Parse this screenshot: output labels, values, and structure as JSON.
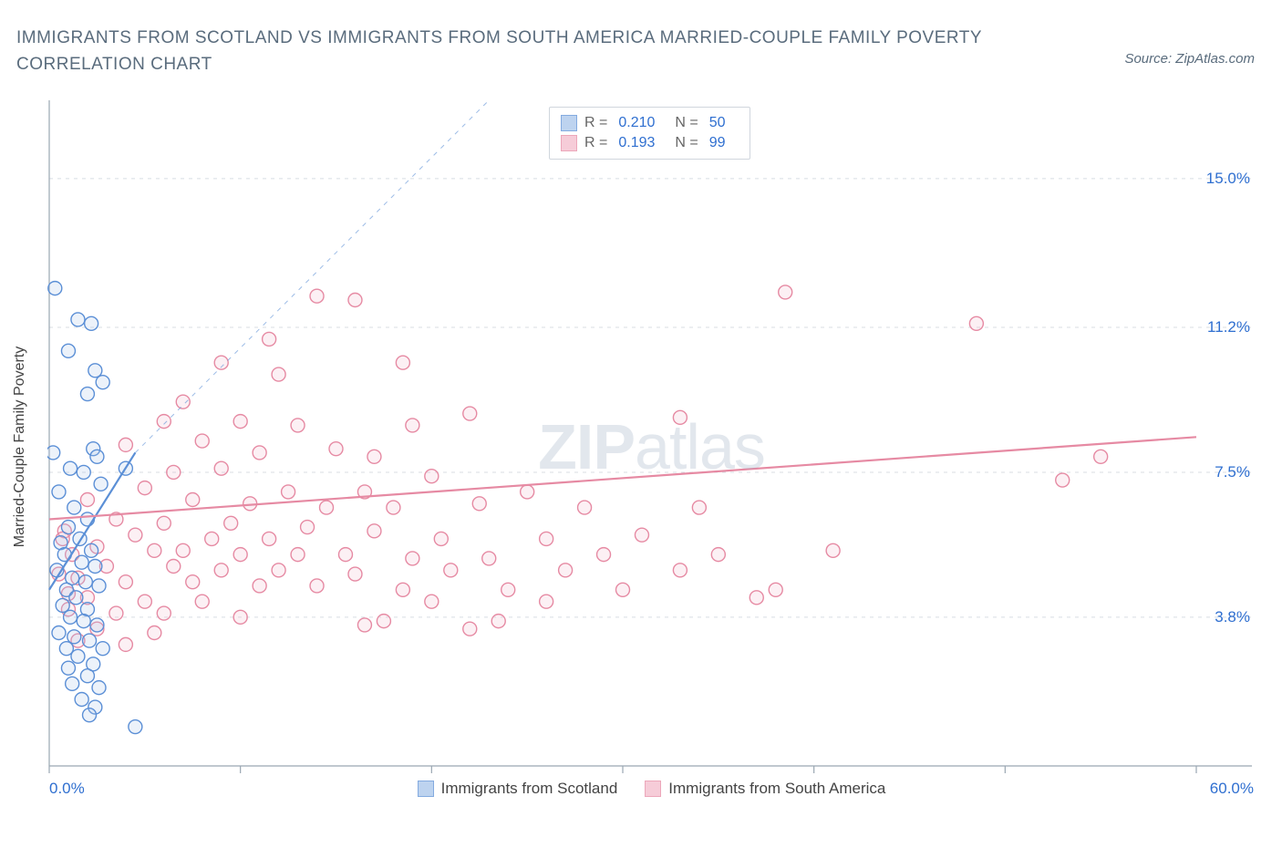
{
  "title": "IMMIGRANTS FROM SCOTLAND VS IMMIGRANTS FROM SOUTH AMERICA MARRIED-COUPLE FAMILY POVERTY CORRELATION CHART",
  "source": "Source: ZipAtlas.com",
  "ylabel": "Married-Couple Family Poverty",
  "watermark_bold": "ZIP",
  "watermark_rest": "atlas",
  "chart": {
    "type": "scatter",
    "xlim": [
      0,
      60
    ],
    "ylim": [
      0,
      17
    ],
    "x_ticks": [
      0,
      10,
      20,
      30,
      40,
      50,
      60
    ],
    "y_gridlines": [
      3.8,
      7.5,
      11.2,
      15.0
    ],
    "y_tick_labels": [
      "3.8%",
      "7.5%",
      "11.2%",
      "15.0%"
    ],
    "x_min_label": "0.0%",
    "x_max_label": "60.0%",
    "background_color": "#ffffff",
    "grid_color": "#d8dde3",
    "axis_color": "#9aa6b2",
    "watermark_color": "rgba(150,170,190,0.28)",
    "axis_fontsize": 17,
    "label_fontsize": 16,
    "title_fontsize": 19,
    "title_color": "#5a6c7d",
    "marker_radius": 7.5,
    "marker_stroke_width": 1.4,
    "marker_fill_opacity": 0.22,
    "trend_line_width": 2.2
  },
  "series": [
    {
      "name": "Immigrants from Scotland",
      "color_stroke": "#5b8fd6",
      "color_fill": "#a7c5ea",
      "R": "0.210",
      "N": "50",
      "trend": {
        "x1": 0,
        "y1": 4.5,
        "x2": 4.5,
        "y2": 8.0,
        "dashed": false
      },
      "trend_ext": {
        "x1": 4.5,
        "y1": 8.0,
        "x2": 23,
        "y2": 17,
        "dashed": true
      },
      "points": [
        [
          0.3,
          12.2
        ],
        [
          1.5,
          11.4
        ],
        [
          2.2,
          11.3
        ],
        [
          1.0,
          10.6
        ],
        [
          2.4,
          10.1
        ],
        [
          2.8,
          9.8
        ],
        [
          2.0,
          9.5
        ],
        [
          0.2,
          8.0
        ],
        [
          2.3,
          8.1
        ],
        [
          2.5,
          7.9
        ],
        [
          1.1,
          7.6
        ],
        [
          1.8,
          7.5
        ],
        [
          4.0,
          7.6
        ],
        [
          2.7,
          7.2
        ],
        [
          0.5,
          7.0
        ],
        [
          1.3,
          6.6
        ],
        [
          2.0,
          6.3
        ],
        [
          1.0,
          6.1
        ],
        [
          1.6,
          5.8
        ],
        [
          0.6,
          5.7
        ],
        [
          2.2,
          5.5
        ],
        [
          0.8,
          5.4
        ],
        [
          1.7,
          5.2
        ],
        [
          2.4,
          5.1
        ],
        [
          0.4,
          5.0
        ],
        [
          1.2,
          4.8
        ],
        [
          1.9,
          4.7
        ],
        [
          0.9,
          4.5
        ],
        [
          2.6,
          4.6
        ],
        [
          1.4,
          4.3
        ],
        [
          0.7,
          4.1
        ],
        [
          2.0,
          4.0
        ],
        [
          1.1,
          3.8
        ],
        [
          1.8,
          3.7
        ],
        [
          2.5,
          3.6
        ],
        [
          0.5,
          3.4
        ],
        [
          1.3,
          3.3
        ],
        [
          2.1,
          3.2
        ],
        [
          0.9,
          3.0
        ],
        [
          2.8,
          3.0
        ],
        [
          1.5,
          2.8
        ],
        [
          2.3,
          2.6
        ],
        [
          1.0,
          2.5
        ],
        [
          2.0,
          2.3
        ],
        [
          1.2,
          2.1
        ],
        [
          2.6,
          2.0
        ],
        [
          1.7,
          1.7
        ],
        [
          2.4,
          1.5
        ],
        [
          2.1,
          1.3
        ],
        [
          4.5,
          1.0
        ]
      ]
    },
    {
      "name": "Immigrants from South America",
      "color_stroke": "#e68aa3",
      "color_fill": "#f3bccb",
      "R": "0.193",
      "N": "99",
      "trend": {
        "x1": 0,
        "y1": 6.3,
        "x2": 60,
        "y2": 8.4,
        "dashed": false
      },
      "points": [
        [
          38.5,
          12.1
        ],
        [
          48.5,
          11.3
        ],
        [
          14.0,
          12.0
        ],
        [
          16.0,
          11.9
        ],
        [
          11.5,
          10.9
        ],
        [
          9.0,
          10.3
        ],
        [
          12.0,
          10.0
        ],
        [
          18.5,
          10.3
        ],
        [
          7.0,
          9.3
        ],
        [
          6.0,
          8.8
        ],
        [
          10.0,
          8.8
        ],
        [
          13.0,
          8.7
        ],
        [
          19.0,
          8.7
        ],
        [
          22.0,
          9.0
        ],
        [
          33.0,
          8.9
        ],
        [
          4.0,
          8.2
        ],
        [
          8.0,
          8.3
        ],
        [
          15.0,
          8.1
        ],
        [
          11.0,
          8.0
        ],
        [
          17.0,
          7.9
        ],
        [
          9.0,
          7.6
        ],
        [
          6.5,
          7.5
        ],
        [
          20.0,
          7.4
        ],
        [
          55.0,
          7.9
        ],
        [
          53.0,
          7.3
        ],
        [
          5.0,
          7.1
        ],
        [
          12.5,
          7.0
        ],
        [
          16.5,
          7.0
        ],
        [
          25.0,
          7.0
        ],
        [
          2.0,
          6.8
        ],
        [
          7.5,
          6.8
        ],
        [
          10.5,
          6.7
        ],
        [
          14.5,
          6.6
        ],
        [
          18.0,
          6.6
        ],
        [
          22.5,
          6.7
        ],
        [
          28.0,
          6.6
        ],
        [
          34.0,
          6.6
        ],
        [
          3.5,
          6.3
        ],
        [
          6.0,
          6.2
        ],
        [
          9.5,
          6.2
        ],
        [
          13.5,
          6.1
        ],
        [
          17.0,
          6.0
        ],
        [
          4.5,
          5.9
        ],
        [
          8.5,
          5.8
        ],
        [
          11.5,
          5.8
        ],
        [
          20.5,
          5.8
        ],
        [
          26.0,
          5.8
        ],
        [
          31.0,
          5.9
        ],
        [
          2.5,
          5.6
        ],
        [
          5.5,
          5.5
        ],
        [
          7.0,
          5.5
        ],
        [
          10.0,
          5.4
        ],
        [
          13.0,
          5.4
        ],
        [
          15.5,
          5.4
        ],
        [
          19.0,
          5.3
        ],
        [
          23.0,
          5.3
        ],
        [
          29.0,
          5.4
        ],
        [
          35.0,
          5.4
        ],
        [
          41.0,
          5.5
        ],
        [
          3.0,
          5.1
        ],
        [
          6.5,
          5.1
        ],
        [
          9.0,
          5.0
        ],
        [
          12.0,
          5.0
        ],
        [
          16.0,
          4.9
        ],
        [
          21.0,
          5.0
        ],
        [
          27.0,
          5.0
        ],
        [
          33.0,
          5.0
        ],
        [
          1.5,
          4.8
        ],
        [
          4.0,
          4.7
        ],
        [
          7.5,
          4.7
        ],
        [
          11.0,
          4.6
        ],
        [
          14.0,
          4.6
        ],
        [
          18.5,
          4.5
        ],
        [
          24.0,
          4.5
        ],
        [
          30.0,
          4.5
        ],
        [
          38.0,
          4.5
        ],
        [
          37.0,
          4.3
        ],
        [
          2.0,
          4.3
        ],
        [
          5.0,
          4.2
        ],
        [
          8.0,
          4.2
        ],
        [
          20.0,
          4.2
        ],
        [
          26.0,
          4.2
        ],
        [
          1.0,
          4.0
        ],
        [
          3.5,
          3.9
        ],
        [
          6.0,
          3.9
        ],
        [
          10.0,
          3.8
        ],
        [
          17.5,
          3.7
        ],
        [
          23.5,
          3.7
        ],
        [
          2.5,
          3.5
        ],
        [
          5.5,
          3.4
        ],
        [
          16.5,
          3.6
        ],
        [
          22.0,
          3.5
        ],
        [
          1.5,
          3.2
        ],
        [
          4.0,
          3.1
        ],
        [
          0.8,
          6.0
        ],
        [
          1.2,
          5.4
        ],
        [
          0.5,
          4.9
        ],
        [
          1.0,
          4.4
        ],
        [
          0.7,
          5.8
        ]
      ]
    }
  ],
  "legend_stats_labels": {
    "R": "R =",
    "N": "N ="
  },
  "bottom_legend_series": [
    {
      "label": "Immigrants from Scotland"
    },
    {
      "label": "Immigrants from South America"
    }
  ]
}
